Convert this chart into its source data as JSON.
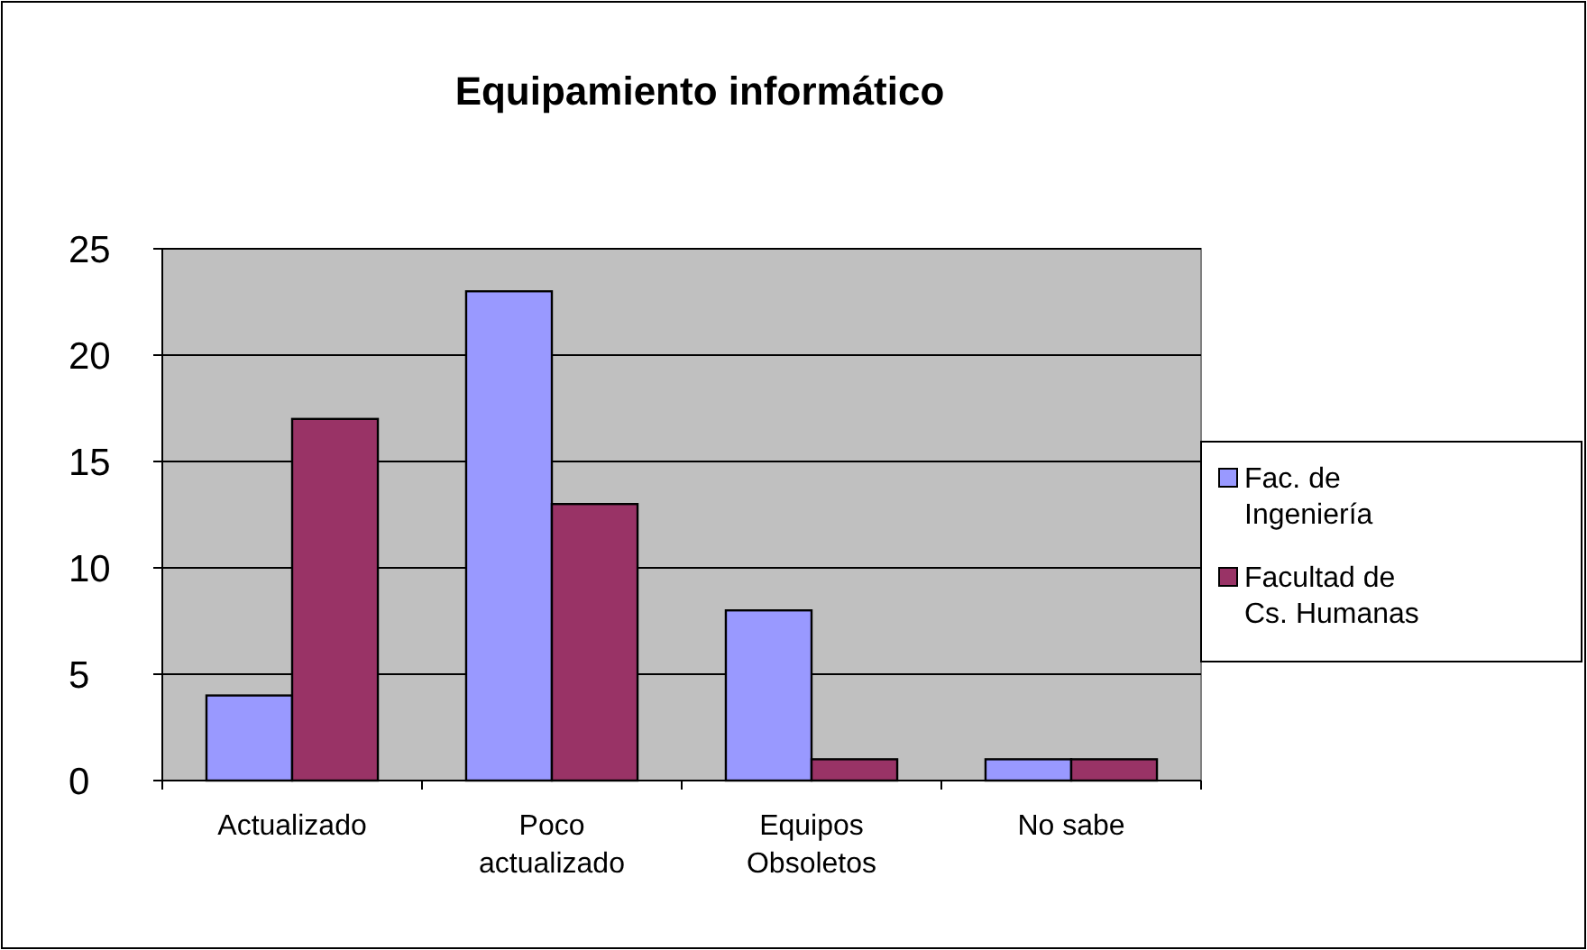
{
  "chart_data": {
    "type": "bar",
    "title": "Equipamiento informático",
    "categories": [
      "Actualizado",
      "Poco actualizado",
      "Equipos Obsoletos",
      "No sabe"
    ],
    "series": [
      {
        "name": "Fac. de Ingeniería",
        "color": "#9999ff",
        "values": [
          4,
          23,
          8,
          1
        ]
      },
      {
        "name": "Facultad de Cs. Humanas",
        "color": "#993366",
        "values": [
          17,
          13,
          1,
          1
        ]
      }
    ],
    "ylim": [
      0,
      25
    ],
    "yticks": [
      0,
      5,
      10,
      15,
      20,
      25
    ],
    "grid": "y",
    "legend": "right"
  }
}
